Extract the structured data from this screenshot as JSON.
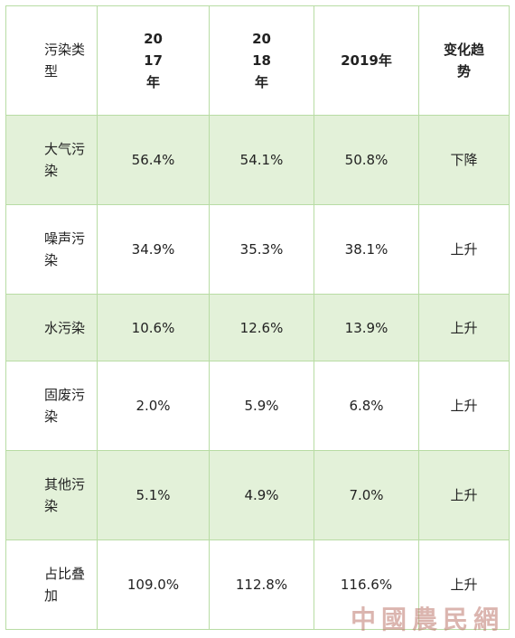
{
  "table": {
    "headers": {
      "type": "污染类型",
      "y2017": "2017年",
      "y2018": "2018年",
      "y2019": "2019年",
      "trend": "变化趋势"
    },
    "rows": [
      {
        "type": "大气污染",
        "v2017": "56.4%",
        "v2018": "54.1%",
        "v2019": "50.8%",
        "trend": "下降"
      },
      {
        "type": "噪声污染",
        "v2017": "34.9%",
        "v2018": "35.3%",
        "v2019": "38.1%",
        "trend": "上升"
      },
      {
        "type": "水污染",
        "v2017": "10.6%",
        "v2018": "12.6%",
        "v2019": "13.9%",
        "trend": "上升"
      },
      {
        "type": "固废污染",
        "v2017": "2.0%",
        "v2018": "5.9%",
        "v2019": "6.8%",
        "trend": "上升"
      },
      {
        "type": "其他污染",
        "v2017": "5.1%",
        "v2018": "4.9%",
        "v2019": "7.0%",
        "trend": "上升"
      },
      {
        "type": "占比叠加",
        "v2017": "109.0%",
        "v2018": "112.8%",
        "v2019": "116.6%",
        "trend": "上升"
      }
    ]
  },
  "watermark": "中國農民網",
  "colors": {
    "border": "#b8dca4",
    "shade": "#e3f1d9",
    "watermark": "#be786e"
  }
}
